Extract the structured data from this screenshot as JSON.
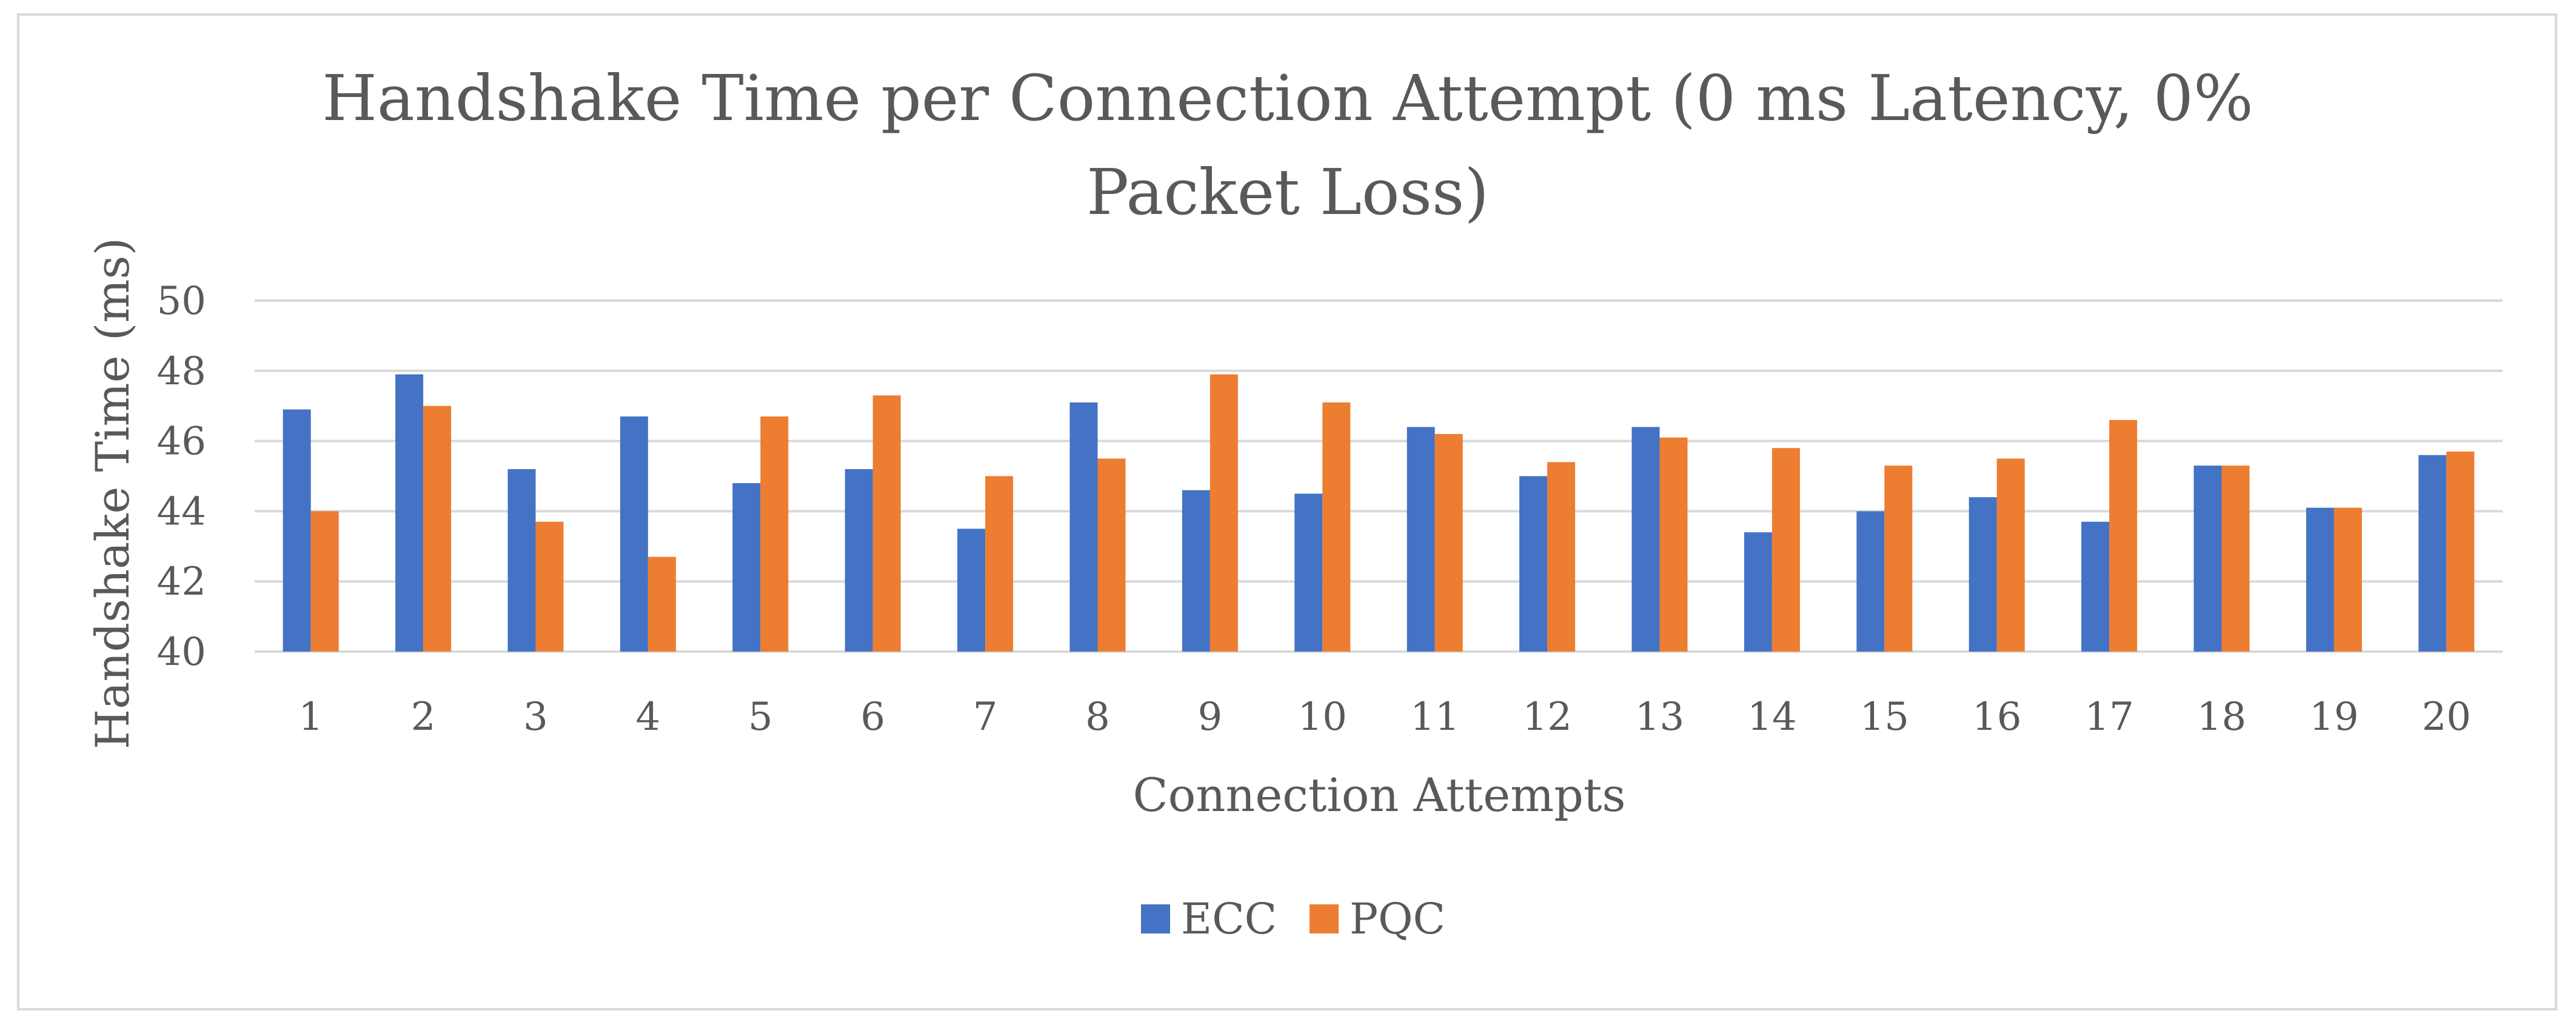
{
  "chart_data": {
    "type": "bar",
    "title": "Handshake Time per Connection Attempt (0 ms Latency, 0% Packet Loss)",
    "title_lines": [
      "Handshake Time per Connection Attempt (0 ms Latency, 0%",
      "Packet Loss)"
    ],
    "xlabel": "Connection Attempts",
    "ylabel": "Handshake Time (ms)",
    "ylim": [
      40,
      50
    ],
    "yticks": [
      40,
      42,
      44,
      46,
      48,
      50
    ],
    "grid": true,
    "legend_position": "bottom",
    "categories": [
      "1",
      "2",
      "3",
      "4",
      "5",
      "6",
      "7",
      "8",
      "9",
      "10",
      "11",
      "12",
      "13",
      "14",
      "15",
      "16",
      "17",
      "18",
      "19",
      "20"
    ],
    "series": [
      {
        "name": "ECC",
        "color": "#4472c4",
        "values": [
          46.9,
          47.9,
          45.2,
          46.7,
          44.8,
          45.2,
          43.5,
          47.1,
          44.6,
          44.5,
          46.4,
          45.0,
          46.4,
          43.4,
          44.0,
          44.4,
          43.7,
          45.3,
          44.1,
          45.6
        ]
      },
      {
        "name": "PQC",
        "color": "#ed7d31",
        "values": [
          44.0,
          47.0,
          43.7,
          42.7,
          46.7,
          47.3,
          45.0,
          45.5,
          47.9,
          47.1,
          46.2,
          45.4,
          46.1,
          45.8,
          45.3,
          45.5,
          46.6,
          45.3,
          44.1,
          45.7
        ]
      }
    ],
    "colors": {
      "gridline": "#d9d9d9",
      "text": "#595959"
    }
  }
}
